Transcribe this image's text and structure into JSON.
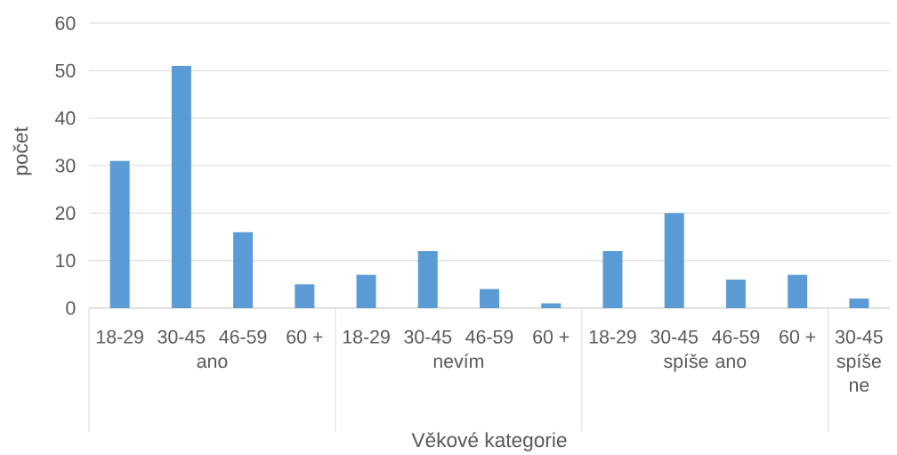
{
  "chart_data": {
    "type": "bar",
    "xlabel": "Věkové kategorie",
    "ylabel": "počet",
    "categories": [
      "18-29",
      "30-45",
      "46-59",
      "60 +",
      "18-29",
      "30-45",
      "46-59",
      "60 +",
      "18-29",
      "30-45",
      "46-59",
      "60 +",
      "30-45"
    ],
    "series": [
      {
        "name": "ano",
        "color": "#5b9bd5",
        "values": [
          31,
          51,
          16,
          5,
          null,
          null,
          null,
          null,
          null,
          null,
          null,
          null,
          null
        ]
      },
      {
        "name": "nevím",
        "color": "#5b9bd5",
        "values": [
          null,
          null,
          null,
          null,
          7,
          12,
          4,
          1,
          null,
          null,
          null,
          null,
          null
        ]
      },
      {
        "name": "spíše ano",
        "color": "#5b9bd5",
        "values": [
          null,
          null,
          null,
          null,
          null,
          null,
          null,
          null,
          12,
          20,
          6,
          7,
          null
        ]
      },
      {
        "name": "spíše ne",
        "color": "#5b9bd5",
        "values": [
          null,
          null,
          null,
          null,
          null,
          null,
          null,
          null,
          null,
          null,
          null,
          null,
          2
        ]
      }
    ],
    "ylim": [
      0,
      60
    ],
    "yticks": [
      0,
      10,
      20,
      30,
      40,
      50,
      60
    ],
    "grid": "y"
  }
}
